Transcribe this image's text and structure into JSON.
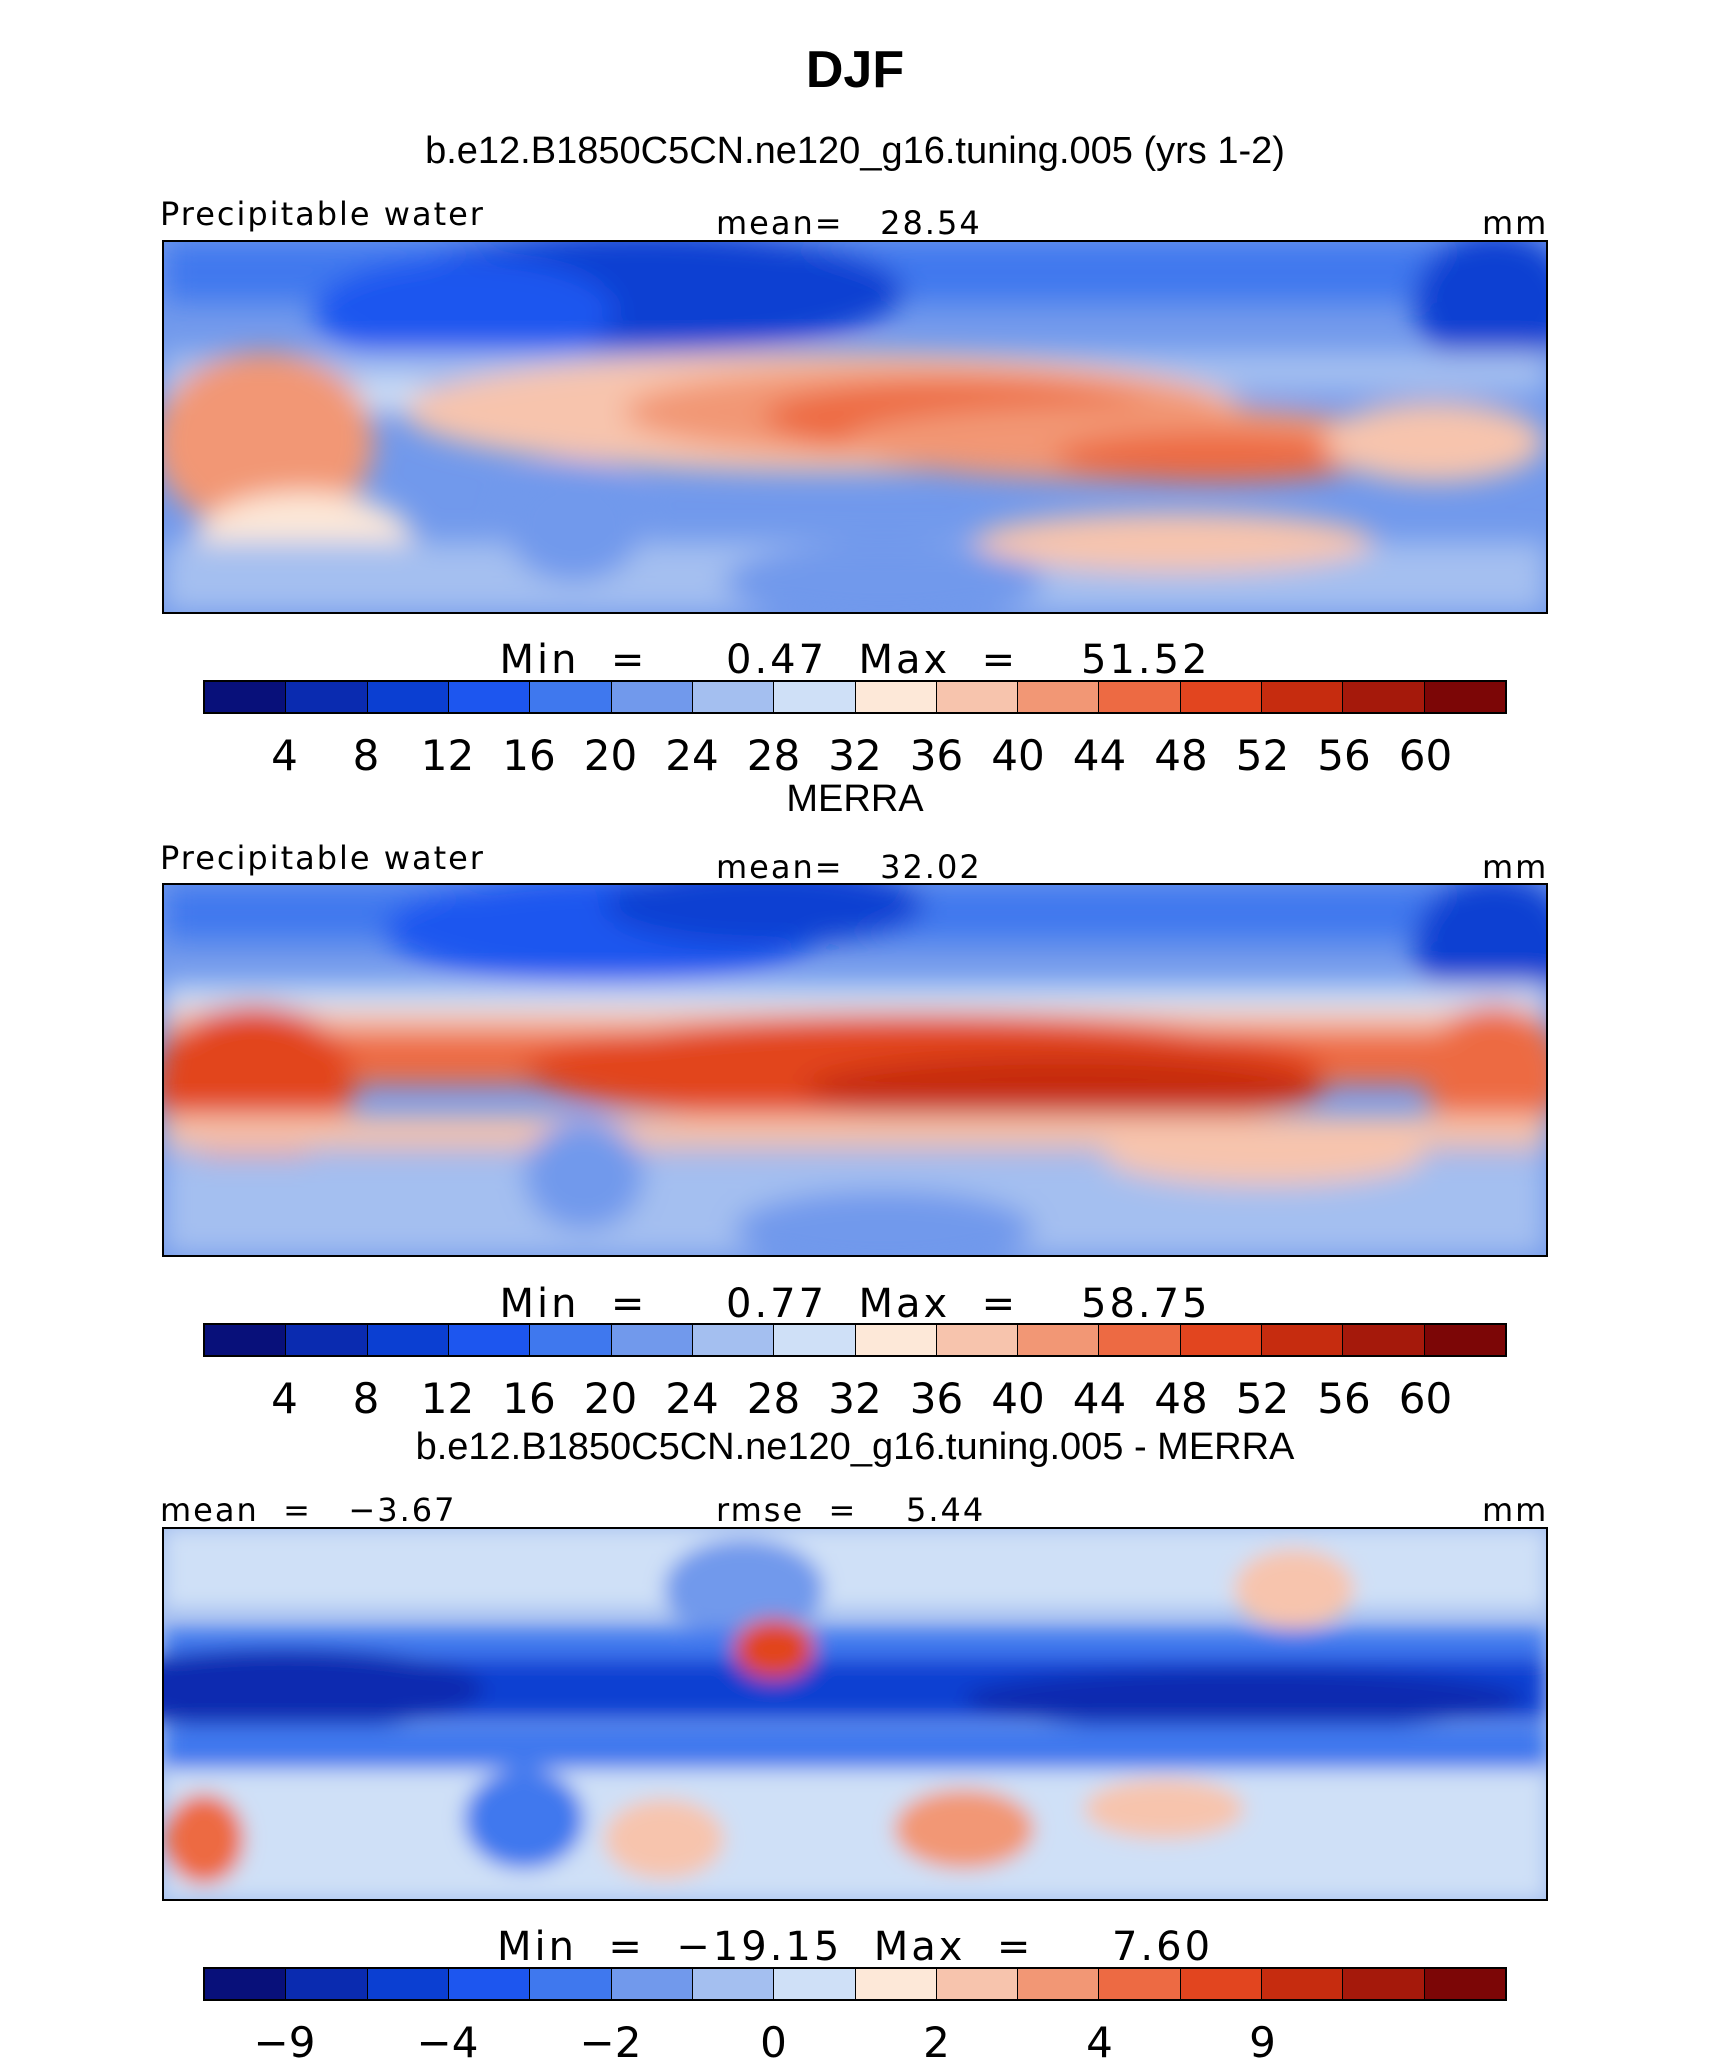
{
  "title": "DJF",
  "panels": [
    {
      "title": "b.e12.B1850C5CN.ne120_g16.tuning.005 (yrs 1-2)",
      "left_label": "Precipitable water",
      "center_label": "mean=   28.54",
      "units": "mm",
      "minmax": "Min  =     0.47  Max  =    51.52",
      "colorbar_colors": [
        "#08107a",
        "#0a2bb0",
        "#0b3fd2",
        "#1d56ef",
        "#3f78ee",
        "#7199ec",
        "#a4bff0",
        "#cfe0f7",
        "#fde8d8",
        "#f7c4ad",
        "#f29775",
        "#ed6a43",
        "#e2451f",
        "#c62c0f",
        "#a5190b",
        "#7c0606"
      ],
      "ticks": [
        "4",
        "8",
        "12",
        "16",
        "20",
        "24",
        "28",
        "32",
        "36",
        "40",
        "44",
        "48",
        "52",
        "56",
        "60"
      ]
    },
    {
      "title": "MERRA",
      "left_label": "Precipitable water",
      "center_label": "mean=   32.02",
      "units": "mm",
      "minmax": "Min  =     0.77  Max  =    58.75",
      "colorbar_colors": [
        "#08107a",
        "#0a2bb0",
        "#0b3fd2",
        "#1d56ef",
        "#3f78ee",
        "#7199ec",
        "#a4bff0",
        "#cfe0f7",
        "#fde8d8",
        "#f7c4ad",
        "#f29775",
        "#ed6a43",
        "#e2451f",
        "#c62c0f",
        "#a5190b",
        "#7c0606"
      ],
      "ticks": [
        "4",
        "8",
        "12",
        "16",
        "20",
        "24",
        "28",
        "32",
        "36",
        "40",
        "44",
        "48",
        "52",
        "56",
        "60"
      ]
    },
    {
      "title": "b.e12.B1850C5CN.ne120_g16.tuning.005 - MERRA",
      "left_label": "mean  =   −3.67",
      "center_label": "rmse  =    5.44",
      "units": "mm",
      "minmax": "Min  =  −19.15  Max  =     7.60",
      "colorbar_colors": [
        "#08107a",
        "#0a2bb0",
        "#0b3fd2",
        "#1d56ef",
        "#3f78ee",
        "#7199ec",
        "#a4bff0",
        "#cfe0f7",
        "#fde8d8",
        "#f7c4ad",
        "#f29775",
        "#ed6a43",
        "#e2451f",
        "#c62c0f",
        "#a5190b",
        "#7c0606"
      ],
      "ticks": [
        "−9",
        "−4",
        "−2",
        "0",
        "2",
        "4",
        "9"
      ]
    }
  ]
}
